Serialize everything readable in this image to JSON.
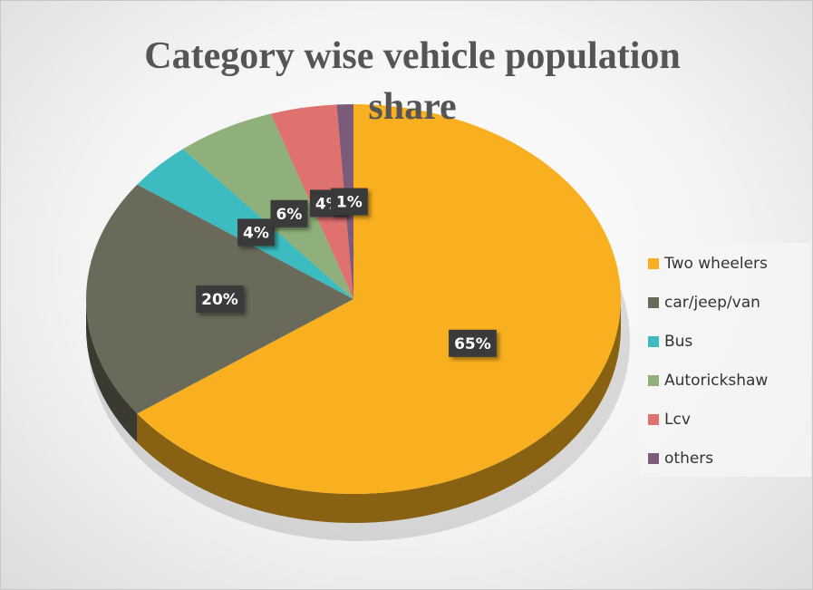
{
  "chart_data": {
    "type": "pie",
    "title": "Category wise vehicle population share",
    "categories": [
      "Two wheelers",
      "car/jeep/van",
      "Bus",
      "Autorickshaw",
      "Lcv",
      "others"
    ],
    "values": [
      65,
      20,
      4,
      6,
      4,
      1
    ],
    "value_labels": [
      "65%",
      "20%",
      "4%",
      "6%",
      "4%",
      "1%"
    ],
    "colors": [
      "#f8b020",
      "#696a59",
      "#3cbcc0",
      "#8fb07a",
      "#df716f",
      "#7b5b79"
    ],
    "legend": "right"
  }
}
